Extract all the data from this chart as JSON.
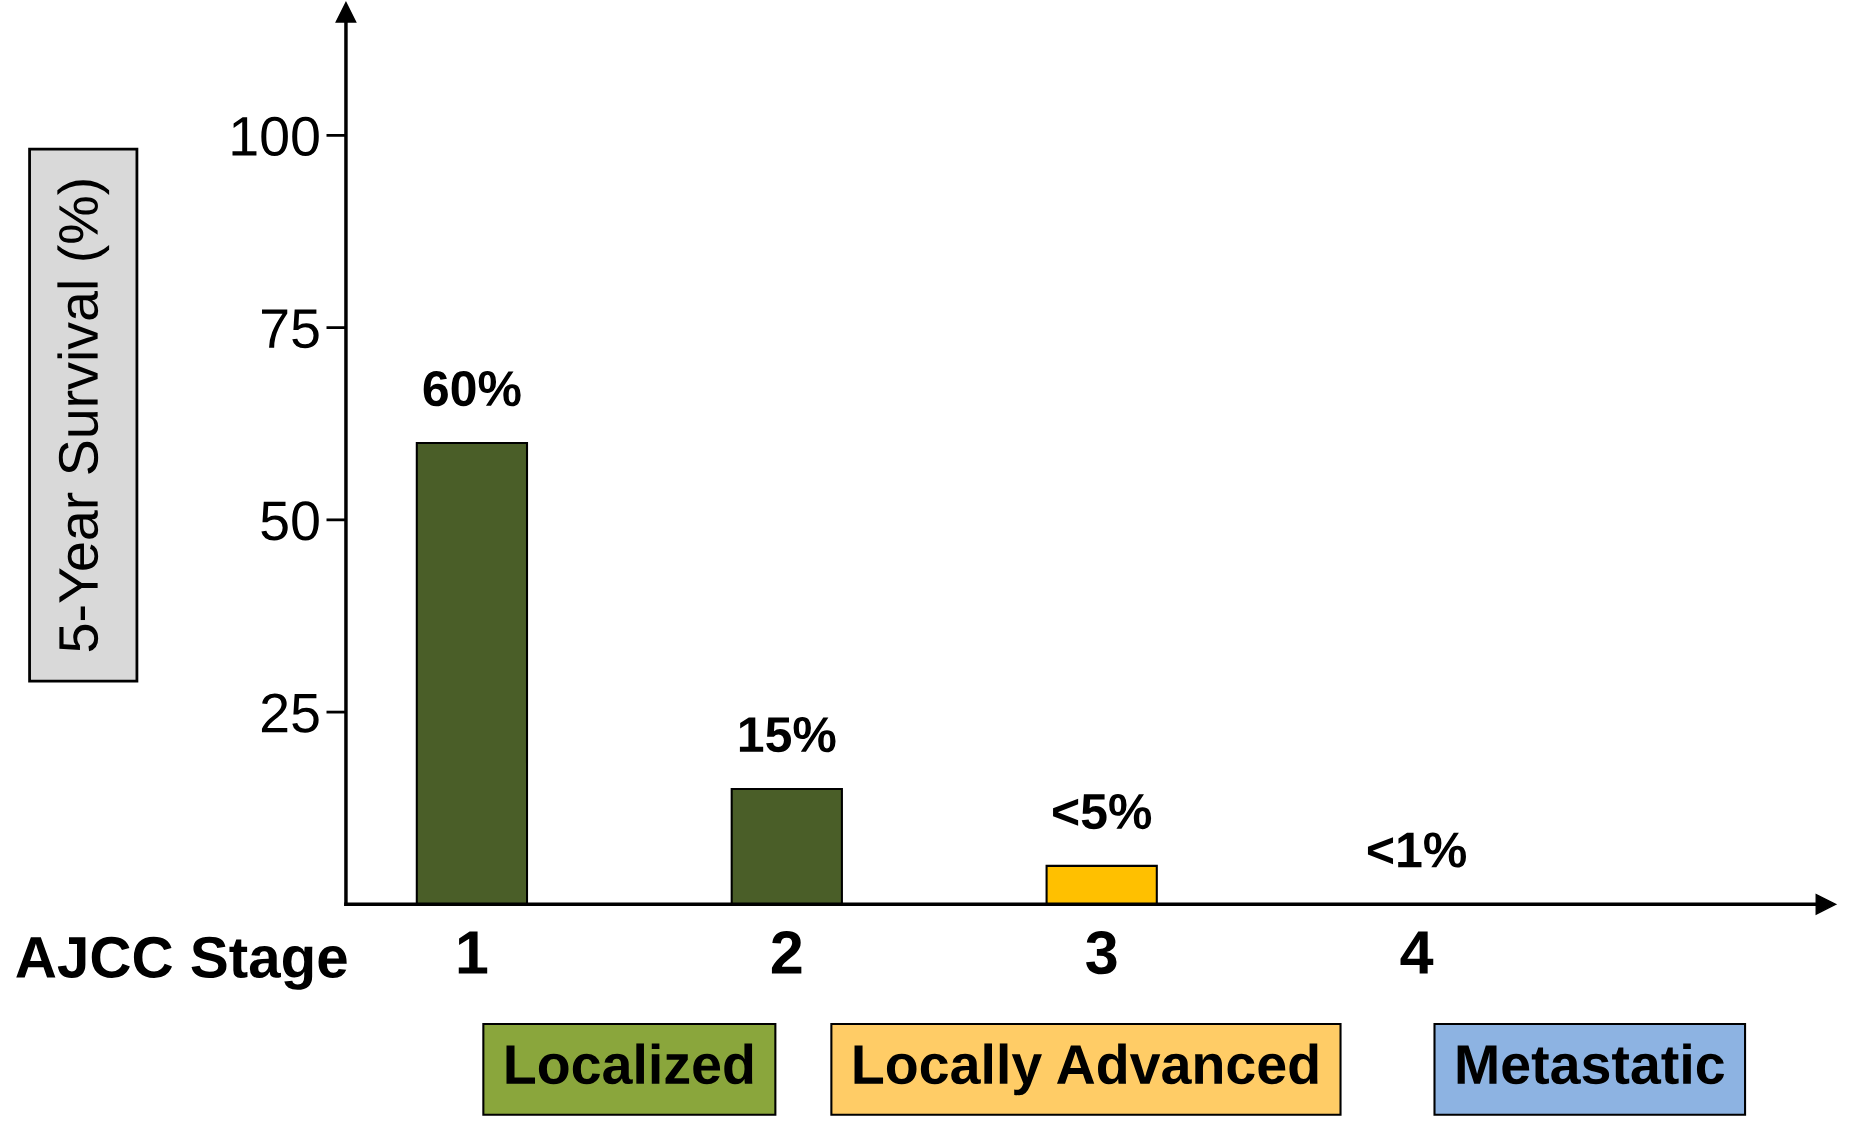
{
  "chart_data": {
    "type": "bar",
    "xlabel": "AJCC Stage",
    "ylabel": "5-Year Survival (%)",
    "categories": [
      "1",
      "2",
      "3",
      "4"
    ],
    "values": [
      60,
      15,
      5,
      null
    ],
    "colors": [
      "#4a5e28",
      "#4a5e28",
      "#ffc000",
      "#8db3e2"
    ],
    "value_labels": [
      "60%",
      "15%",
      "<5%",
      "<1%"
    ],
    "ylim": [
      0,
      116
    ],
    "yticks": [
      25,
      50,
      75,
      100
    ],
    "grid": false,
    "legend": false,
    "annotations": [
      "Localized",
      "Locally Advanced",
      "Metastatic"
    ]
  }
}
